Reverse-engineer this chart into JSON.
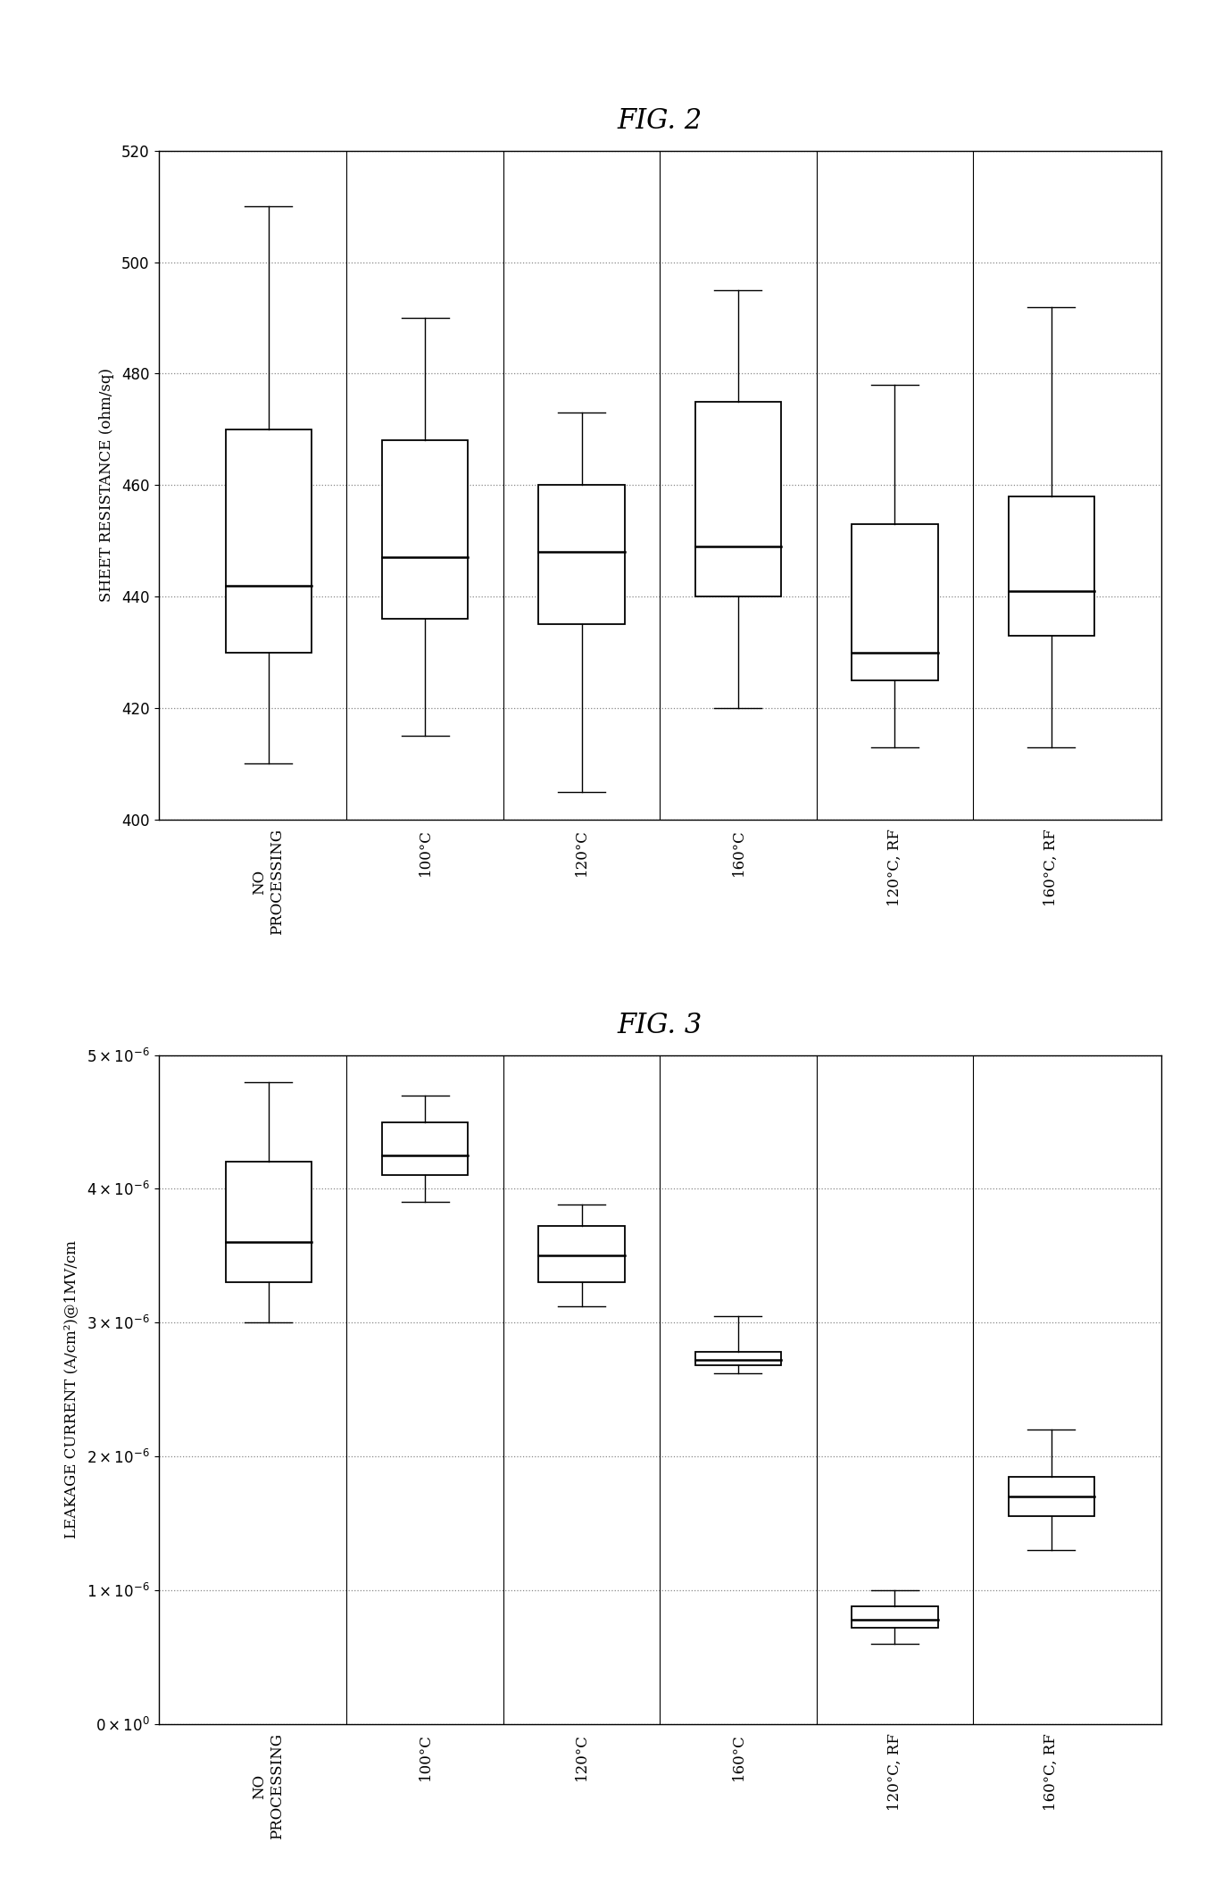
{
  "fig2_title": "FIG. 2",
  "fig3_title": "FIG. 3",
  "categories": [
    "NO\nPROCESSING",
    "100°C",
    "120°C",
    "160°C",
    "120°C, RF",
    "160°C, RF"
  ],
  "fig2_ylabel": "SHEET RESISTANCE (ohm/sq)",
  "fig2_ylim": [
    400,
    520
  ],
  "fig2_yticks": [
    400,
    420,
    440,
    460,
    480,
    500,
    520
  ],
  "fig2_boxes": [
    {
      "whislo": 410,
      "q1": 430,
      "med": 442,
      "q3": 470,
      "whishi": 510
    },
    {
      "whislo": 415,
      "q1": 436,
      "med": 447,
      "q3": 468,
      "whishi": 490
    },
    {
      "whislo": 405,
      "q1": 435,
      "med": 448,
      "q3": 460,
      "whishi": 473
    },
    {
      "whislo": 420,
      "q1": 440,
      "med": 449,
      "q3": 475,
      "whishi": 495
    },
    {
      "whislo": 413,
      "q1": 425,
      "med": 430,
      "q3": 453,
      "whishi": 478
    },
    {
      "whislo": 413,
      "q1": 433,
      "med": 441,
      "q3": 458,
      "whishi": 492
    }
  ],
  "fig3_ylabel": "LEAKAGE CURRENT (A/cm²)@1MV/cm",
  "fig3_ylim": [
    0,
    5e-06
  ],
  "fig3_yticks": [
    0,
    1e-06,
    2e-06,
    3e-06,
    4e-06,
    5e-06
  ],
  "fig3_boxes": [
    {
      "whislo": 3e-06,
      "q1": 3.3e-06,
      "med": 3.6e-06,
      "q3": 4.2e-06,
      "whishi": 4.8e-06
    },
    {
      "whislo": 3.9e-06,
      "q1": 4.1e-06,
      "med": 4.25e-06,
      "q3": 4.5e-06,
      "whishi": 4.7e-06
    },
    {
      "whislo": 3.12e-06,
      "q1": 3.3e-06,
      "med": 3.5e-06,
      "q3": 3.72e-06,
      "whishi": 3.88e-06
    },
    {
      "whislo": 2.62e-06,
      "q1": 2.68e-06,
      "med": 2.72e-06,
      "q3": 2.78e-06,
      "whishi": 3.05e-06
    },
    {
      "whislo": 6e-07,
      "q1": 7.2e-07,
      "med": 7.8e-07,
      "q3": 8.8e-07,
      "whishi": 1e-06
    },
    {
      "whislo": 1.3e-06,
      "q1": 1.55e-06,
      "med": 1.7e-06,
      "q3": 1.85e-06,
      "whishi": 2.2e-06
    }
  ],
  "box_facecolor": "white",
  "box_edgecolor": "black",
  "median_color": "black",
  "whisker_color": "black",
  "cap_color": "black",
  "grid_color": "#888888",
  "fig_title_fontsize": 22,
  "axis_label_fontsize": 12,
  "tick_fontsize": 12,
  "xtick_fontsize": 12,
  "background_color": "white",
  "box_width": 0.55
}
